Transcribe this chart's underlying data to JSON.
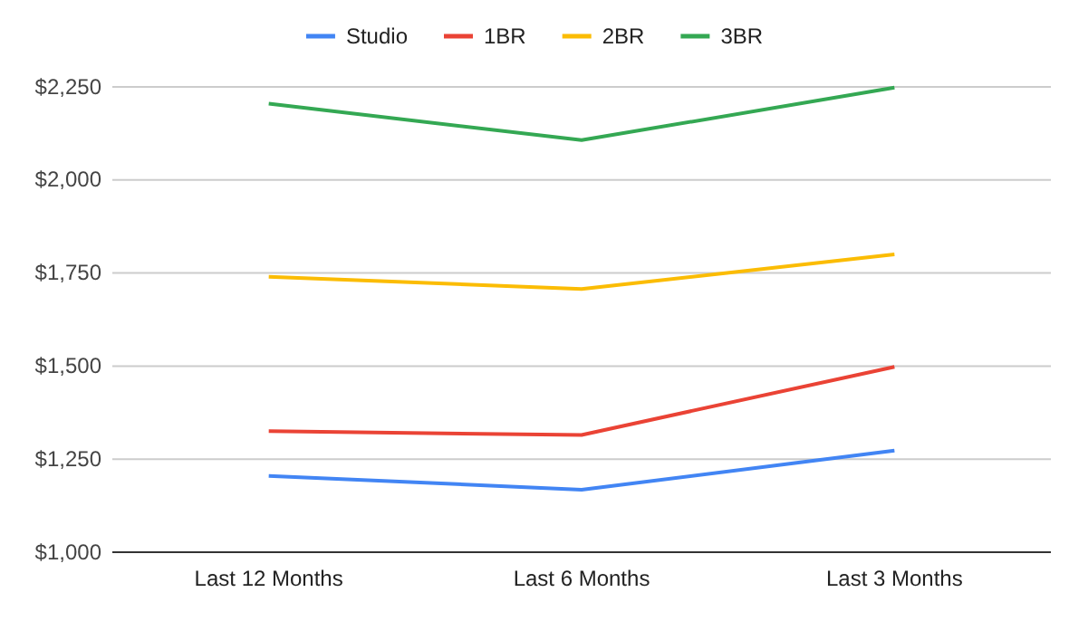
{
  "chart_data": {
    "type": "line",
    "categories": [
      "Last 12 Months",
      "Last 6 Months",
      "Last 3 Months"
    ],
    "series": [
      {
        "name": "Studio",
        "color": "#4285f4",
        "values": [
          1205,
          1168,
          1273
        ]
      },
      {
        "name": "1BR",
        "color": "#ea4335",
        "values": [
          1325,
          1315,
          1498
        ]
      },
      {
        "name": "2BR",
        "color": "#fbbc04",
        "values": [
          1740,
          1707,
          1800
        ]
      },
      {
        "name": "3BR",
        "color": "#34a853",
        "values": [
          2205,
          2107,
          2248
        ]
      }
    ],
    "ylim": [
      1000,
      2250
    ],
    "yticks": [
      {
        "value": 1000,
        "label": "$1,000"
      },
      {
        "value": 1250,
        "label": "$1,250"
      },
      {
        "value": 1500,
        "label": "$1,500"
      },
      {
        "value": 1750,
        "label": "$1,750"
      },
      {
        "value": 2000,
        "label": "$2,000"
      },
      {
        "value": 2250,
        "label": "$2,250"
      }
    ],
    "grid": "y",
    "legend": "top",
    "marker": "none",
    "line_style": "solid"
  }
}
